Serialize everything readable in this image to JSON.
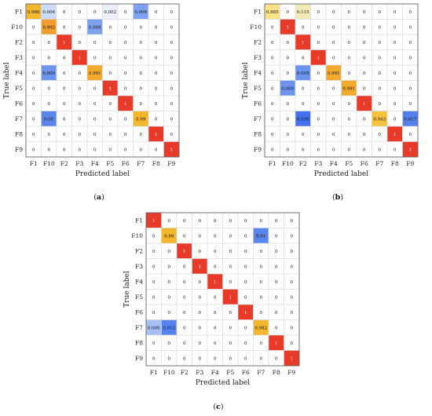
{
  "chart_data": [
    {
      "type": "heatmap",
      "panel_label": "a",
      "xlabel": "Predicted label",
      "ylabel": "True label",
      "row_labels": [
        "F1",
        "F10",
        "F2",
        "F3",
        "F4",
        "F5",
        "F6",
        "F7",
        "F8",
        "F9"
      ],
      "col_labels": [
        "F1",
        "F10",
        "F2",
        "F3",
        "F4",
        "F5",
        "F6",
        "F7",
        "F8",
        "F9"
      ],
      "cells": [
        [
          "0.986",
          "0.004",
          "0",
          "0",
          "0",
          "0.002",
          "0",
          "0.008",
          "0",
          "0"
        ],
        [
          "0",
          "0.992",
          "0",
          "0",
          "0.008",
          "0",
          "0",
          "0",
          "0",
          "0"
        ],
        [
          "0",
          "0",
          "1",
          "0",
          "0",
          "0",
          "0",
          "0",
          "0",
          "0"
        ],
        [
          "0",
          "0",
          "0",
          "1",
          "0",
          "0",
          "0",
          "0",
          "0",
          "0"
        ],
        [
          "0",
          "0.009",
          "0",
          "0",
          "0.991",
          "0",
          "0",
          "0",
          "0",
          "0"
        ],
        [
          "0",
          "0",
          "0",
          "0",
          "0",
          "1",
          "0",
          "0",
          "0",
          "0"
        ],
        [
          "0",
          "0",
          "0",
          "0",
          "0",
          "0",
          "1",
          "0",
          "0",
          "0"
        ],
        [
          "0",
          "0.01",
          "0",
          "0",
          "0",
          "0",
          "0",
          "0.99",
          "0",
          "0"
        ],
        [
          "0",
          "0",
          "0",
          "0",
          "0",
          "0",
          "0",
          "0",
          "1",
          "0"
        ],
        [
          "0",
          "0",
          "0",
          "0",
          "0",
          "0",
          "0",
          "0",
          "0",
          "1"
        ]
      ]
    },
    {
      "type": "heatmap",
      "panel_label": "b",
      "xlabel": "Predicted label",
      "ylabel": "True label",
      "row_labels": [
        "F1",
        "F10",
        "F2",
        "F3",
        "F4",
        "F5",
        "F6",
        "F7",
        "F8",
        "F9"
      ],
      "col_labels": [
        "F1",
        "F10",
        "F2",
        "F3",
        "F4",
        "F5",
        "F6",
        "F7",
        "F8",
        "F9"
      ],
      "cells": [
        [
          "0.885",
          "0",
          "0.115",
          "0",
          "0",
          "0",
          "0",
          "0",
          "0",
          "0"
        ],
        [
          "0",
          "1",
          "0",
          "0",
          "0",
          "0",
          "0",
          "0",
          "0",
          "0"
        ],
        [
          "0",
          "0",
          "1",
          "0",
          "0",
          "0",
          "0",
          "0",
          "0",
          "0"
        ],
        [
          "0",
          "0",
          "0",
          "1",
          "0",
          "0",
          "0",
          "0",
          "0",
          "0"
        ],
        [
          "0",
          "0",
          "0.009",
          "0",
          "0.991",
          "0",
          "0",
          "0",
          "0",
          "0"
        ],
        [
          "0",
          "0.009",
          "0",
          "0",
          "0",
          "0.991",
          "0",
          "0",
          "0",
          "0"
        ],
        [
          "0",
          "0",
          "0",
          "0",
          "0",
          "0",
          "1",
          "0",
          "0",
          "0"
        ],
        [
          "0",
          "0",
          "0.036",
          "0",
          "0",
          "0",
          "0",
          "0.943",
          "0",
          "0.017"
        ],
        [
          "0",
          "0",
          "0",
          "0",
          "0",
          "0",
          "0",
          "0",
          "1",
          "0"
        ],
        [
          "0",
          "0",
          "0",
          "0",
          "0",
          "0",
          "0",
          "0",
          "0",
          "1"
        ]
      ]
    },
    {
      "type": "heatmap",
      "panel_label": "c",
      "xlabel": "Predicted label",
      "ylabel": "True label",
      "row_labels": [
        "F1",
        "F10",
        "F2",
        "F3",
        "F4",
        "F5",
        "F6",
        "F7",
        "F8",
        "F9"
      ],
      "col_labels": [
        "F1",
        "F10",
        "F2",
        "F3",
        "F4",
        "F5",
        "F6",
        "F7",
        "F8",
        "F9"
      ],
      "cells": [
        [
          "1",
          "0",
          "0",
          "0",
          "0",
          "0",
          "0",
          "0",
          "0",
          "0"
        ],
        [
          "0",
          "0.99",
          "0",
          "0",
          "0",
          "0",
          "0",
          "0.01",
          "0",
          "0"
        ],
        [
          "0",
          "0",
          "1",
          "0",
          "0",
          "0",
          "0",
          "0",
          "0",
          "0"
        ],
        [
          "0",
          "0",
          "0",
          "1",
          "0",
          "0",
          "0",
          "0",
          "0",
          "0"
        ],
        [
          "0",
          "0",
          "0",
          "0",
          "1",
          "0",
          "0",
          "0",
          "0",
          "0"
        ],
        [
          "0",
          "0",
          "0",
          "0",
          "0",
          "1",
          "0",
          "0",
          "0",
          "0"
        ],
        [
          "0",
          "0",
          "0",
          "0",
          "0",
          "0",
          "1",
          "0",
          "0",
          "0"
        ],
        [
          "0.006",
          "0.012",
          "0",
          "0",
          "0",
          "0",
          "0",
          "0.982",
          "0",
          "0"
        ],
        [
          "0",
          "0",
          "0",
          "0",
          "0",
          "0",
          "0",
          "0",
          "1",
          "0"
        ],
        [
          "0",
          "0",
          "0",
          "0",
          "0",
          "0",
          "0",
          "0",
          "0",
          "1"
        ]
      ]
    }
  ]
}
